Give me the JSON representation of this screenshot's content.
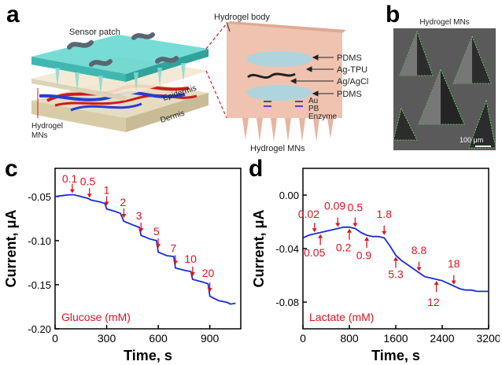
{
  "panels": {
    "a": {
      "letter": "a",
      "sensor_patch": "Sensor patch",
      "epidermis": "Epidermis",
      "dermis": "Dermis",
      "hydrogel_mns_left_1": "Hydrogel",
      "hydrogel_mns_left_2": "MNs",
      "hydrogel_body": "Hydrogel body",
      "layers": [
        "PDMS",
        "Ag-TPU",
        "Ag/AgCl",
        "PDMS",
        "Au",
        "PB",
        "Enzyme"
      ],
      "hydrogel_mns_bottom": "Hydrogel MNs"
    },
    "b": {
      "letter": "b",
      "title": "Hydrogel MNs",
      "scale_bar": "100 μm"
    }
  },
  "chart_data": [
    {
      "panel": "c",
      "type": "line",
      "xlabel": "Time, s",
      "ylabel": "Current, μA",
      "xlim": [
        0,
        1080
      ],
      "ylim": [
        -0.2,
        -0.018
      ],
      "xticks": [
        0,
        300,
        600,
        900
      ],
      "yticks": [
        -0.05,
        -0.1,
        -0.15,
        -0.2
      ],
      "ytick_labels": [
        "-0.05",
        "-0.10",
        "-0.15",
        "-0.20"
      ],
      "inner_label": "Glucose (mM)",
      "series": [
        {
          "x": [
            0,
            40,
            80,
            110,
            150,
            190,
            210,
            260,
            290,
            300,
            350,
            380,
            400,
            450,
            490,
            500,
            550,
            590,
            600,
            650,
            690,
            700,
            760,
            790,
            800,
            860,
            890,
            900,
            950,
            1000,
            1020,
            1050
          ],
          "y": [
            -0.05,
            -0.049,
            -0.048,
            -0.048,
            -0.05,
            -0.052,
            -0.054,
            -0.056,
            -0.058,
            -0.064,
            -0.067,
            -0.069,
            -0.078,
            -0.082,
            -0.085,
            -0.094,
            -0.098,
            -0.1,
            -0.113,
            -0.117,
            -0.118,
            -0.131,
            -0.134,
            -0.135,
            -0.144,
            -0.147,
            -0.149,
            -0.163,
            -0.168,
            -0.17,
            -0.172,
            -0.171
          ]
        }
      ],
      "annotations": [
        {
          "text": "0.1",
          "x": 100,
          "y": -0.048,
          "tx": 85,
          "ty": -0.034
        },
        {
          "text": "0.5",
          "x": 200,
          "y": -0.053,
          "tx": 190,
          "ty": -0.037
        },
        {
          "text": "1",
          "x": 300,
          "y": -0.062,
          "tx": 300,
          "ty": -0.047
        },
        {
          "text": "2",
          "x": 400,
          "y": -0.076,
          "tx": 395,
          "ty": -0.061
        },
        {
          "text": "3",
          "x": 500,
          "y": -0.092,
          "tx": 488,
          "ty": -0.076
        },
        {
          "text": "5",
          "x": 600,
          "y": -0.11,
          "tx": 590,
          "ty": -0.094
        },
        {
          "text": "7",
          "x": 700,
          "y": -0.129,
          "tx": 688,
          "ty": -0.113
        },
        {
          "text": "10",
          "x": 800,
          "y": -0.142,
          "tx": 788,
          "ty": -0.125
        },
        {
          "text": "20",
          "x": 900,
          "y": -0.16,
          "tx": 890,
          "ty": -0.141
        }
      ]
    },
    {
      "panel": "d",
      "type": "line",
      "xlabel": "Time, s",
      "ylabel": "Current, μA",
      "xlim": [
        0,
        3200
      ],
      "ylim": [
        -0.1,
        0.02
      ],
      "xticks": [
        0,
        800,
        1600,
        2400,
        3200
      ],
      "yticks": [
        0.0,
        -0.04,
        -0.08
      ],
      "ytick_labels": [
        "0.00",
        "-0.04",
        "-0.08"
      ],
      "inner_label": "Lactate (mM)",
      "series": [
        {
          "x": [
            0,
            100,
            200,
            300,
            400,
            500,
            600,
            700,
            800,
            900,
            1000,
            1100,
            1200,
            1300,
            1400,
            1500,
            1600,
            1700,
            1800,
            1900,
            2000,
            2100,
            2200,
            2300,
            2400,
            2500,
            2600,
            2700,
            2800,
            2900,
            3000,
            3100,
            3200
          ],
          "y": [
            -0.032,
            -0.03,
            -0.029,
            -0.028,
            -0.027,
            -0.026,
            -0.025,
            -0.024,
            -0.024,
            -0.025,
            -0.028,
            -0.03,
            -0.031,
            -0.031,
            -0.032,
            -0.038,
            -0.045,
            -0.049,
            -0.052,
            -0.055,
            -0.058,
            -0.061,
            -0.062,
            -0.063,
            -0.064,
            -0.066,
            -0.068,
            -0.07,
            -0.071,
            -0.071,
            -0.072,
            -0.072,
            -0.072
          ]
        }
      ],
      "annotations": [
        {
          "text": "0.02",
          "x": 200,
          "y": -0.029,
          "tx": 100,
          "ty": -0.017,
          "dir": "down"
        },
        {
          "text": "0.09",
          "x": 600,
          "y": -0.025,
          "tx": 550,
          "ty": -0.011,
          "dir": "down"
        },
        {
          "text": "0.5",
          "x": 900,
          "y": -0.025,
          "tx": 900,
          "ty": -0.012,
          "dir": "down"
        },
        {
          "text": "1.8",
          "x": 1400,
          "y": -0.031,
          "tx": 1400,
          "ty": -0.017,
          "dir": "down"
        },
        {
          "text": "8.8",
          "x": 2000,
          "y": -0.058,
          "tx": 2000,
          "ty": -0.044,
          "dir": "down"
        },
        {
          "text": "18",
          "x": 2600,
          "y": -0.068,
          "tx": 2600,
          "ty": -0.054,
          "dir": "down"
        },
        {
          "text": "0.05",
          "x": 300,
          "y": -0.028,
          "tx": 200,
          "ty": -0.046,
          "dir": "up"
        },
        {
          "text": "0.2",
          "x": 800,
          "y": -0.024,
          "tx": 700,
          "ty": -0.042,
          "dir": "up"
        },
        {
          "text": "0.9",
          "x": 1100,
          "y": -0.03,
          "tx": 1050,
          "ty": -0.048,
          "dir": "up"
        },
        {
          "text": "5.3",
          "x": 1600,
          "y": -0.045,
          "tx": 1600,
          "ty": -0.062,
          "dir": "up"
        },
        {
          "text": "12",
          "x": 2300,
          "y": -0.063,
          "tx": 2250,
          "ty": -0.083,
          "dir": "up"
        }
      ]
    }
  ],
  "colors": {
    "line": "#1a2bd6",
    "annotation": "#e0141e",
    "skin": "#efc3b0",
    "hydrogel": "#5fd6cf"
  }
}
